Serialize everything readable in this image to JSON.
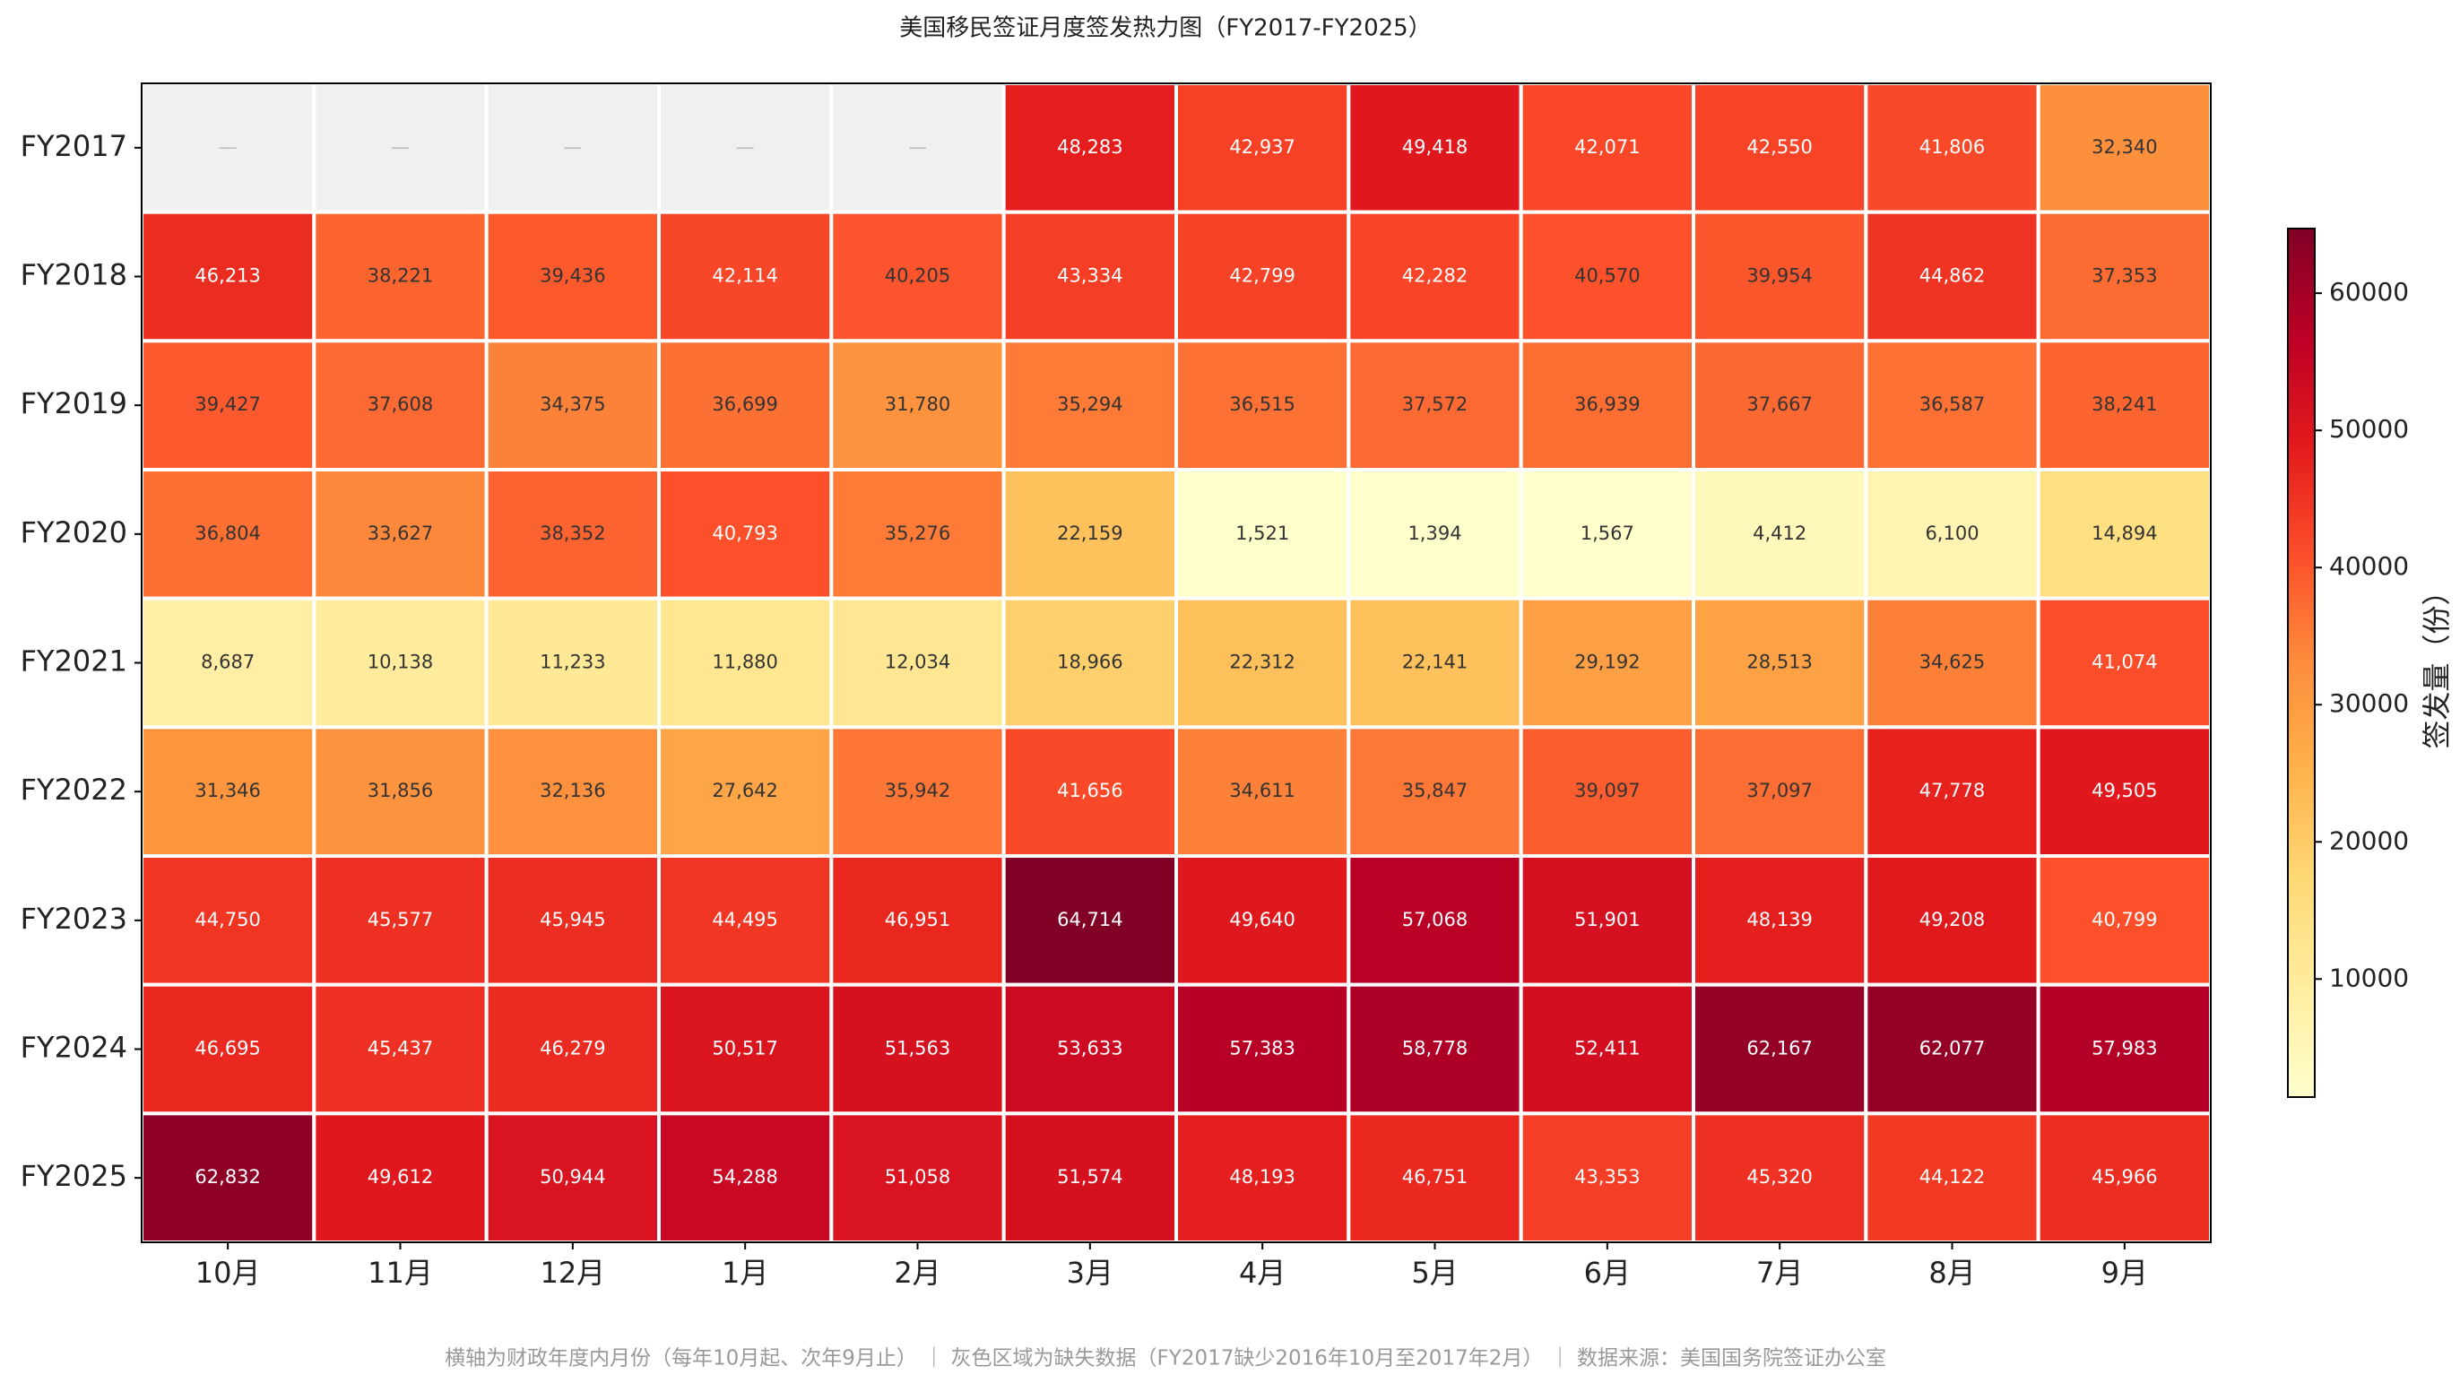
{
  "chart_data": {
    "type": "heatmap",
    "title": "美国移民签证月度签发热力图（FY2017-FY2025）",
    "rows": [
      "FY2017",
      "FY2018",
      "FY2019",
      "FY2020",
      "FY2021",
      "FY2022",
      "FY2023",
      "FY2024",
      "FY2025"
    ],
    "columns": [
      "10月",
      "11月",
      "12月",
      "1月",
      "2月",
      "3月",
      "4月",
      "5月",
      "6月",
      "7月",
      "8月",
      "9月"
    ],
    "values": [
      [
        null,
        null,
        null,
        null,
        null,
        48283,
        42937,
        49418,
        42071,
        42550,
        41806,
        32340
      ],
      [
        46213,
        38221,
        39436,
        42114,
        40205,
        43334,
        42799,
        42282,
        40570,
        39954,
        44862,
        37353
      ],
      [
        39427,
        37608,
        34375,
        36699,
        31780,
        35294,
        36515,
        37572,
        36939,
        37667,
        36587,
        38241
      ],
      [
        36804,
        33627,
        38352,
        40793,
        35276,
        22159,
        1521,
        1394,
        1567,
        4412,
        6100,
        14894
      ],
      [
        8687,
        10138,
        11233,
        11880,
        12034,
        18966,
        22312,
        22141,
        29192,
        28513,
        34625,
        41074
      ],
      [
        31346,
        31856,
        32136,
        27642,
        35942,
        41656,
        34611,
        35847,
        39097,
        37097,
        47778,
        49505
      ],
      [
        44750,
        45577,
        45945,
        44495,
        46951,
        64714,
        49640,
        57068,
        51901,
        48139,
        49208,
        40799
      ],
      [
        46695,
        45437,
        46279,
        50517,
        51563,
        53633,
        57383,
        58778,
        52411,
        62167,
        62077,
        57983
      ],
      [
        62832,
        49612,
        50944,
        54288,
        51058,
        51574,
        48193,
        46751,
        43353,
        45320,
        44122,
        45966
      ]
    ],
    "value_labels": [
      [
        null,
        null,
        null,
        null,
        null,
        "48,283",
        "42,937",
        "49,418",
        "42,071",
        "42,550",
        "41,806",
        "32,340"
      ],
      [
        "46,213",
        "38,221",
        "39,436",
        "42,114",
        "40,205",
        "43,334",
        "42,799",
        "42,282",
        "40,570",
        "39,954",
        "44,862",
        "37,353"
      ],
      [
        "39,427",
        "37,608",
        "34,375",
        "36,699",
        "31,780",
        "35,294",
        "36,515",
        "37,572",
        "36,939",
        "37,667",
        "36,587",
        "38,241"
      ],
      [
        "36,804",
        "33,627",
        "38,352",
        "40,793",
        "35,276",
        "22,159",
        "1,521",
        "1,394",
        "1,567",
        "4,412",
        "6,100",
        "14,894"
      ],
      [
        "8,687",
        "10,138",
        "11,233",
        "11,880",
        "12,034",
        "18,966",
        "22,312",
        "22,141",
        "29,192",
        "28,513",
        "34,625",
        "41,074"
      ],
      [
        "31,346",
        "31,856",
        "32,136",
        "27,642",
        "35,942",
        "41,656",
        "34,611",
        "35,847",
        "39,097",
        "37,097",
        "47,778",
        "49,505"
      ],
      [
        "44,750",
        "45,577",
        "45,945",
        "44,495",
        "46,951",
        "64,714",
        "49,640",
        "57,068",
        "51,901",
        "48,139",
        "49,208",
        "40,799"
      ],
      [
        "46,695",
        "45,437",
        "46,279",
        "50,517",
        "51,563",
        "53,633",
        "57,383",
        "58,778",
        "52,411",
        "62,167",
        "62,077",
        "57,983"
      ],
      [
        "62,832",
        "49,612",
        "50,944",
        "54,288",
        "51,058",
        "51,574",
        "48,193",
        "46,751",
        "43,353",
        "45,320",
        "44,122",
        "45,966"
      ]
    ],
    "missing_label": "—",
    "missing_color": "#f0f0f0",
    "colormap": [
      "#ffffcc",
      "#ffeda0",
      "#fed976",
      "#feb24c",
      "#fd8d3c",
      "#fc4e2a",
      "#e31a1c",
      "#bd0026",
      "#800026"
    ],
    "colorbar": {
      "label": "签发量（份）",
      "lim": [
        1394,
        64714
      ],
      "ticks": [
        10000,
        20000,
        30000,
        40000,
        50000,
        60000
      ]
    },
    "footnote": "横轴为财政年度内月份（每年10月起、次年9月止） ｜ 灰色区域为缺失数据（FY2017缺少2016年10月至2017年2月） ｜ 数据来源：美国国务院签证办公室"
  }
}
